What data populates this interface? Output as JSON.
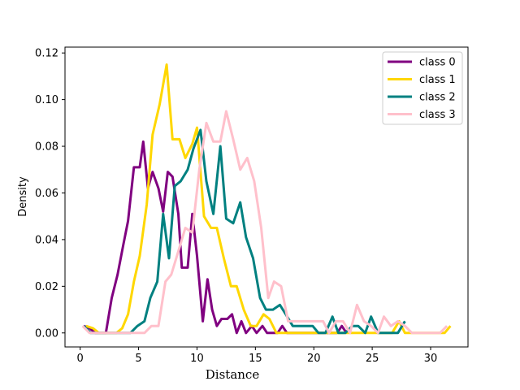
{
  "chart_data": {
    "type": "line",
    "xlabel": "Distance",
    "ylabel": "Density",
    "xlim": [
      -1.3,
      33.2
    ],
    "ylim": [
      -0.006,
      0.1225
    ],
    "xticks": [
      0,
      5,
      10,
      15,
      20,
      25,
      30
    ],
    "xtick_labels": [
      "0",
      "5",
      "10",
      "15",
      "20",
      "25",
      "30"
    ],
    "yticks": [
      0.0,
      0.02,
      0.04,
      0.06,
      0.08,
      0.1,
      0.12
    ],
    "ytick_labels": [
      "0.00",
      "0.02",
      "0.04",
      "0.06",
      "0.08",
      "0.10",
      "0.12"
    ],
    "legend_position": "top-right",
    "series": [
      {
        "name": "class 0",
        "color": "#800080",
        "points": [
          [
            0.3,
            0.003
          ],
          [
            0.8,
            0.002
          ],
          [
            1.3,
            0.0
          ],
          [
            1.8,
            0.0
          ],
          [
            2.2,
            0.0
          ],
          [
            2.7,
            0.015
          ],
          [
            3.2,
            0.025
          ],
          [
            3.7,
            0.038
          ],
          [
            4.1,
            0.048
          ],
          [
            4.6,
            0.071
          ],
          [
            5.1,
            0.071
          ],
          [
            5.4,
            0.082
          ],
          [
            5.8,
            0.062
          ],
          [
            6.2,
            0.069
          ],
          [
            6.7,
            0.062
          ],
          [
            7.1,
            0.052
          ],
          [
            7.5,
            0.069
          ],
          [
            7.9,
            0.067
          ],
          [
            8.4,
            0.051
          ],
          [
            8.7,
            0.028
          ],
          [
            9.2,
            0.028
          ],
          [
            9.6,
            0.051
          ],
          [
            10.0,
            0.033
          ],
          [
            10.5,
            0.005
          ],
          [
            10.9,
            0.023
          ],
          [
            11.3,
            0.01
          ],
          [
            11.7,
            0.003
          ],
          [
            12.1,
            0.006
          ],
          [
            12.6,
            0.006
          ],
          [
            13.0,
            0.008
          ],
          [
            13.4,
            0.0
          ],
          [
            13.8,
            0.005
          ],
          [
            14.2,
            0.0
          ],
          [
            14.7,
            0.003
          ],
          [
            15.1,
            0.0
          ],
          [
            15.6,
            0.003
          ],
          [
            16.0,
            0.0
          ],
          [
            16.4,
            0.0
          ],
          [
            16.9,
            0.0
          ],
          [
            17.3,
            0.003
          ],
          [
            17.7,
            0.0
          ],
          [
            18.1,
            0.0
          ],
          [
            18.6,
            0.0
          ],
          [
            19.0,
            0.0
          ],
          [
            19.4,
            0.0
          ],
          [
            19.9,
            0.0
          ],
          [
            20.3,
            0.0
          ],
          [
            20.7,
            0.0
          ],
          [
            21.1,
            0.0
          ],
          [
            21.5,
            0.0
          ],
          [
            22.0,
            0.0
          ],
          [
            22.4,
            0.003
          ],
          [
            22.8,
            0.0
          ]
        ]
      },
      {
        "name": "class 1",
        "color": "#FFD700",
        "points": [
          [
            0.5,
            0.003
          ],
          [
            1.1,
            0.002
          ],
          [
            1.6,
            0.0
          ],
          [
            2.1,
            0.0
          ],
          [
            2.6,
            0.0
          ],
          [
            3.1,
            0.0
          ],
          [
            3.6,
            0.002
          ],
          [
            4.1,
            0.008
          ],
          [
            4.6,
            0.022
          ],
          [
            5.1,
            0.033
          ],
          [
            5.7,
            0.055
          ],
          [
            6.2,
            0.085
          ],
          [
            6.8,
            0.098
          ],
          [
            7.4,
            0.115
          ],
          [
            7.9,
            0.083
          ],
          [
            8.5,
            0.083
          ],
          [
            9.0,
            0.075
          ],
          [
            9.6,
            0.081
          ],
          [
            10.0,
            0.088
          ],
          [
            10.6,
            0.05
          ],
          [
            11.2,
            0.045
          ],
          [
            11.7,
            0.045
          ],
          [
            12.3,
            0.032
          ],
          [
            12.9,
            0.02
          ],
          [
            13.4,
            0.02
          ],
          [
            14.0,
            0.01
          ],
          [
            14.6,
            0.003
          ],
          [
            15.1,
            0.003
          ],
          [
            15.7,
            0.008
          ],
          [
            16.2,
            0.006
          ],
          [
            16.8,
            0.0
          ],
          [
            17.3,
            0.0
          ],
          [
            17.9,
            0.0
          ],
          [
            18.4,
            0.0
          ],
          [
            19.0,
            0.0
          ],
          [
            19.5,
            0.0
          ],
          [
            20.1,
            0.0
          ],
          [
            20.6,
            0.0
          ],
          [
            21.2,
            0.0
          ],
          [
            21.7,
            0.0
          ],
          [
            22.3,
            0.0
          ],
          [
            22.8,
            0.0
          ],
          [
            23.4,
            0.0
          ],
          [
            24.0,
            0.0
          ],
          [
            24.5,
            0.0
          ],
          [
            25.1,
            0.0
          ],
          [
            25.6,
            0.0
          ],
          [
            26.2,
            0.0
          ],
          [
            26.7,
            0.0
          ],
          [
            27.3,
            0.005
          ],
          [
            27.8,
            0.0
          ],
          [
            28.4,
            0.0
          ],
          [
            28.9,
            0.0
          ],
          [
            29.5,
            0.0
          ],
          [
            30.1,
            0.0
          ],
          [
            30.6,
            0.0
          ],
          [
            31.2,
            0.0
          ],
          [
            31.7,
            0.003
          ]
        ]
      },
      {
        "name": "class 2",
        "color": "#008080",
        "points": [
          [
            0.3,
            0.003
          ],
          [
            0.9,
            0.0
          ],
          [
            1.5,
            0.0
          ],
          [
            2.0,
            0.0
          ],
          [
            2.6,
            0.0
          ],
          [
            3.2,
            0.0
          ],
          [
            3.8,
            0.0
          ],
          [
            4.3,
            0.0
          ],
          [
            4.9,
            0.003
          ],
          [
            5.5,
            0.005
          ],
          [
            6.0,
            0.015
          ],
          [
            6.6,
            0.022
          ],
          [
            7.1,
            0.051
          ],
          [
            7.6,
            0.032
          ],
          [
            8.1,
            0.063
          ],
          [
            8.6,
            0.065
          ],
          [
            9.2,
            0.07
          ],
          [
            9.7,
            0.079
          ],
          [
            10.3,
            0.087
          ],
          [
            10.8,
            0.065
          ],
          [
            11.4,
            0.051
          ],
          [
            12.0,
            0.08
          ],
          [
            12.5,
            0.049
          ],
          [
            13.1,
            0.047
          ],
          [
            13.7,
            0.056
          ],
          [
            14.2,
            0.041
          ],
          [
            14.8,
            0.032
          ],
          [
            15.4,
            0.015
          ],
          [
            15.9,
            0.01
          ],
          [
            16.5,
            0.01
          ],
          [
            17.1,
            0.012
          ],
          [
            17.6,
            0.008
          ],
          [
            18.2,
            0.003
          ],
          [
            18.8,
            0.003
          ],
          [
            19.3,
            0.003
          ],
          [
            19.9,
            0.003
          ],
          [
            20.4,
            0.0
          ],
          [
            21.0,
            0.0
          ],
          [
            21.6,
            0.007
          ],
          [
            22.1,
            0.0
          ],
          [
            22.7,
            0.0
          ],
          [
            23.3,
            0.003
          ],
          [
            23.8,
            0.003
          ],
          [
            24.4,
            0.0
          ],
          [
            24.9,
            0.007
          ],
          [
            25.5,
            0.0
          ],
          [
            26.1,
            0.0
          ],
          [
            26.6,
            0.0
          ],
          [
            27.2,
            0.0
          ],
          [
            27.8,
            0.005
          ]
        ]
      },
      {
        "name": "class 3",
        "color": "#FFC0CB",
        "points": [
          [
            0.2,
            0.003
          ],
          [
            0.8,
            0.0
          ],
          [
            1.4,
            0.0
          ],
          [
            2.0,
            0.0
          ],
          [
            2.6,
            0.0
          ],
          [
            3.2,
            0.0
          ],
          [
            3.7,
            0.0
          ],
          [
            4.3,
            0.0
          ],
          [
            4.9,
            0.0
          ],
          [
            5.5,
            0.0
          ],
          [
            6.1,
            0.003
          ],
          [
            6.7,
            0.003
          ],
          [
            7.3,
            0.022
          ],
          [
            7.8,
            0.025
          ],
          [
            8.4,
            0.035
          ],
          [
            9.0,
            0.045
          ],
          [
            9.6,
            0.043
          ],
          [
            10.2,
            0.07
          ],
          [
            10.8,
            0.09
          ],
          [
            11.4,
            0.082
          ],
          [
            12.0,
            0.082
          ],
          [
            12.5,
            0.095
          ],
          [
            13.1,
            0.083
          ],
          [
            13.7,
            0.07
          ],
          [
            14.3,
            0.075
          ],
          [
            14.9,
            0.065
          ],
          [
            15.5,
            0.045
          ],
          [
            16.1,
            0.015
          ],
          [
            16.6,
            0.022
          ],
          [
            17.2,
            0.02
          ],
          [
            17.8,
            0.005
          ],
          [
            18.4,
            0.005
          ],
          [
            19.0,
            0.005
          ],
          [
            19.6,
            0.005
          ],
          [
            20.2,
            0.005
          ],
          [
            20.8,
            0.005
          ],
          [
            21.3,
            0.0
          ],
          [
            21.9,
            0.005
          ],
          [
            22.5,
            0.005
          ],
          [
            23.1,
            0.0
          ],
          [
            23.7,
            0.012
          ],
          [
            24.3,
            0.005
          ],
          [
            24.9,
            0.003
          ],
          [
            25.5,
            0.0
          ],
          [
            26.0,
            0.007
          ],
          [
            26.6,
            0.003
          ],
          [
            27.2,
            0.005
          ],
          [
            27.8,
            0.003
          ],
          [
            28.4,
            0.0
          ],
          [
            29.0,
            0.0
          ],
          [
            29.6,
            0.0
          ],
          [
            30.2,
            0.0
          ],
          [
            30.8,
            0.0
          ],
          [
            31.4,
            0.003
          ]
        ]
      }
    ]
  }
}
